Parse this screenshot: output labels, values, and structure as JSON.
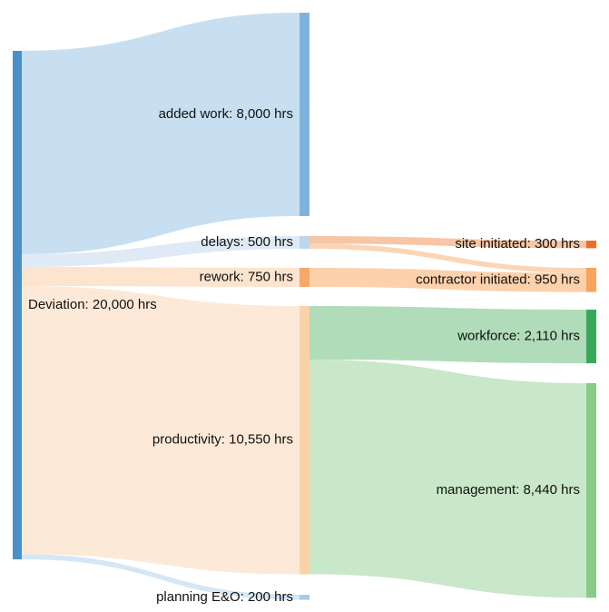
{
  "chart_data": {
    "type": "sankey",
    "unit": "hrs",
    "nodes": [
      {
        "id": "deviation",
        "name": "Deviation",
        "value": 20000,
        "label": "Deviation: 20,000 hrs",
        "column": 0,
        "color": "#4a90c8"
      },
      {
        "id": "added_work",
        "name": "added work",
        "value": 8000,
        "label": "added work: 8,000 hrs",
        "column": 1,
        "color": "#7fb3dc"
      },
      {
        "id": "delays",
        "name": "delays",
        "value": 500,
        "label": "delays: 500 hrs",
        "column": 1,
        "color": "#bdd6ec"
      },
      {
        "id": "rework",
        "name": "rework",
        "value": 750,
        "label": "rework: 750 hrs",
        "column": 1,
        "color": "#f6a869"
      },
      {
        "id": "productivity",
        "name": "productivity",
        "value": 10550,
        "label": "productivity: 10,550 hrs",
        "column": 1,
        "color": "#fbd2a8"
      },
      {
        "id": "planning",
        "name": "planning E&O",
        "value": 200,
        "label": "planning E&O: 200 hrs",
        "column": 1,
        "color": "#a9cbe8"
      },
      {
        "id": "site",
        "name": "site initiated",
        "value": 300,
        "label": "site initiated: 300 hrs",
        "column": 2,
        "color": "#e8702a"
      },
      {
        "id": "contractor",
        "name": "contractor initiated",
        "value": 950,
        "label": "contractor initiated: 950 hrs",
        "column": 2,
        "color": "#f8a45c"
      },
      {
        "id": "workforce",
        "name": "workforce",
        "value": 2110,
        "label": "workforce: 2,110 hrs",
        "column": 2,
        "color": "#3aa85a"
      },
      {
        "id": "management",
        "name": "management",
        "value": 8440,
        "label": "management: 8,440 hrs",
        "column": 2,
        "color": "#86cc86"
      }
    ],
    "links": [
      {
        "source": "deviation",
        "target": "added_work",
        "value": 8000,
        "color": "#c4ddf0"
      },
      {
        "source": "deviation",
        "target": "delays",
        "value": 500,
        "color": "#dde9f5"
      },
      {
        "source": "deviation",
        "target": "rework",
        "value": 750,
        "color": "#fde3cc"
      },
      {
        "source": "deviation",
        "target": "productivity",
        "value": 10550,
        "color": "#fde8d5"
      },
      {
        "source": "deviation",
        "target": "planning",
        "value": 200,
        "color": "#d3e6f4"
      },
      {
        "source": "delays",
        "target": "site",
        "value": 300,
        "color": "#f7c3a0"
      },
      {
        "source": "delays",
        "target": "contractor",
        "value": 200,
        "color": "#fbd3b0"
      },
      {
        "source": "rework",
        "target": "contractor",
        "value": 750,
        "color": "#fccfa6"
      },
      {
        "source": "productivity",
        "target": "workforce",
        "value": 2110,
        "color": "#acdab6"
      },
      {
        "source": "productivity",
        "target": "management",
        "value": 8440,
        "color": "#c6e6c6"
      }
    ]
  }
}
